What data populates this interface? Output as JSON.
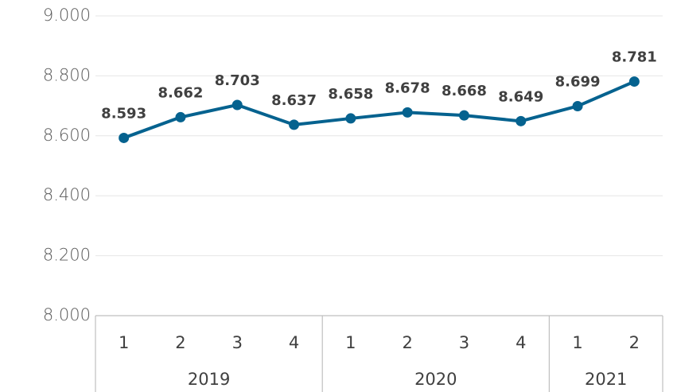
{
  "chart_data": {
    "type": "line",
    "groups": [
      {
        "name": "2019",
        "categories": [
          "1",
          "2",
          "3",
          "4"
        ]
      },
      {
        "name": "2020",
        "categories": [
          "1",
          "2",
          "3",
          "4"
        ]
      },
      {
        "name": "2021",
        "categories": [
          "1",
          "2"
        ]
      }
    ],
    "values": [
      8593,
      8662,
      8703,
      8637,
      8658,
      8678,
      8668,
      8649,
      8699,
      8781
    ],
    "value_labels": [
      "8.593",
      "8.662",
      "8.703",
      "8.637",
      "8.658",
      "8.678",
      "8.668",
      "8.649",
      "8.699",
      "8.781"
    ],
    "color": "#05628f",
    "ylim": [
      8000,
      9000
    ],
    "yticks": [
      {
        "value": 8000,
        "label": "8.000"
      },
      {
        "value": 8200,
        "label": "8.200"
      },
      {
        "value": 8400,
        "label": "8.400"
      },
      {
        "value": 8600,
        "label": "8.600"
      },
      {
        "value": 8800,
        "label": "8.800"
      },
      {
        "value": 9000,
        "label": "9.000"
      }
    ],
    "grid": true
  }
}
